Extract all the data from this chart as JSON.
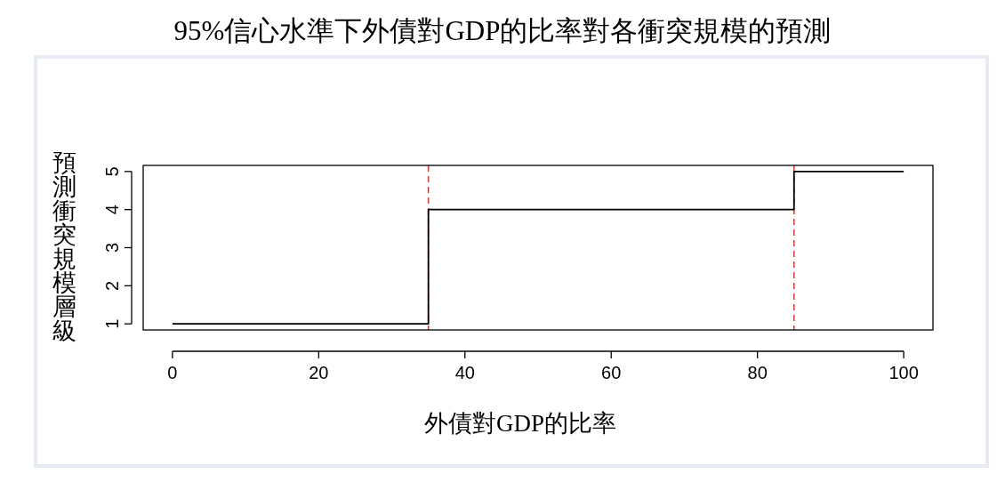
{
  "chart_data": {
    "type": "step",
    "title": "95%信心水準下外債對GDP的比率對各衝突規模的預測",
    "xlabel": "外債對GDP的比率",
    "ylabel": "預測衝突規模層級",
    "x": [
      0,
      35,
      85,
      100
    ],
    "series": [
      {
        "color": "#000000",
        "values": [
          1,
          4,
          5,
          5
        ]
      }
    ],
    "xlim": [
      -4,
      104
    ],
    "ylim": [
      0.84,
      5.16
    ],
    "xticks": [
      0,
      20,
      40,
      60,
      80,
      100
    ],
    "yticks": [
      1,
      2,
      3,
      4,
      5
    ],
    "grid": false,
    "ref_lines": [
      {
        "axis": "x",
        "value": 35,
        "color": "#e8312f",
        "line_style": "dashed"
      },
      {
        "axis": "x",
        "value": 85,
        "color": "#e8312f",
        "line_style": "dashed"
      }
    ]
  }
}
